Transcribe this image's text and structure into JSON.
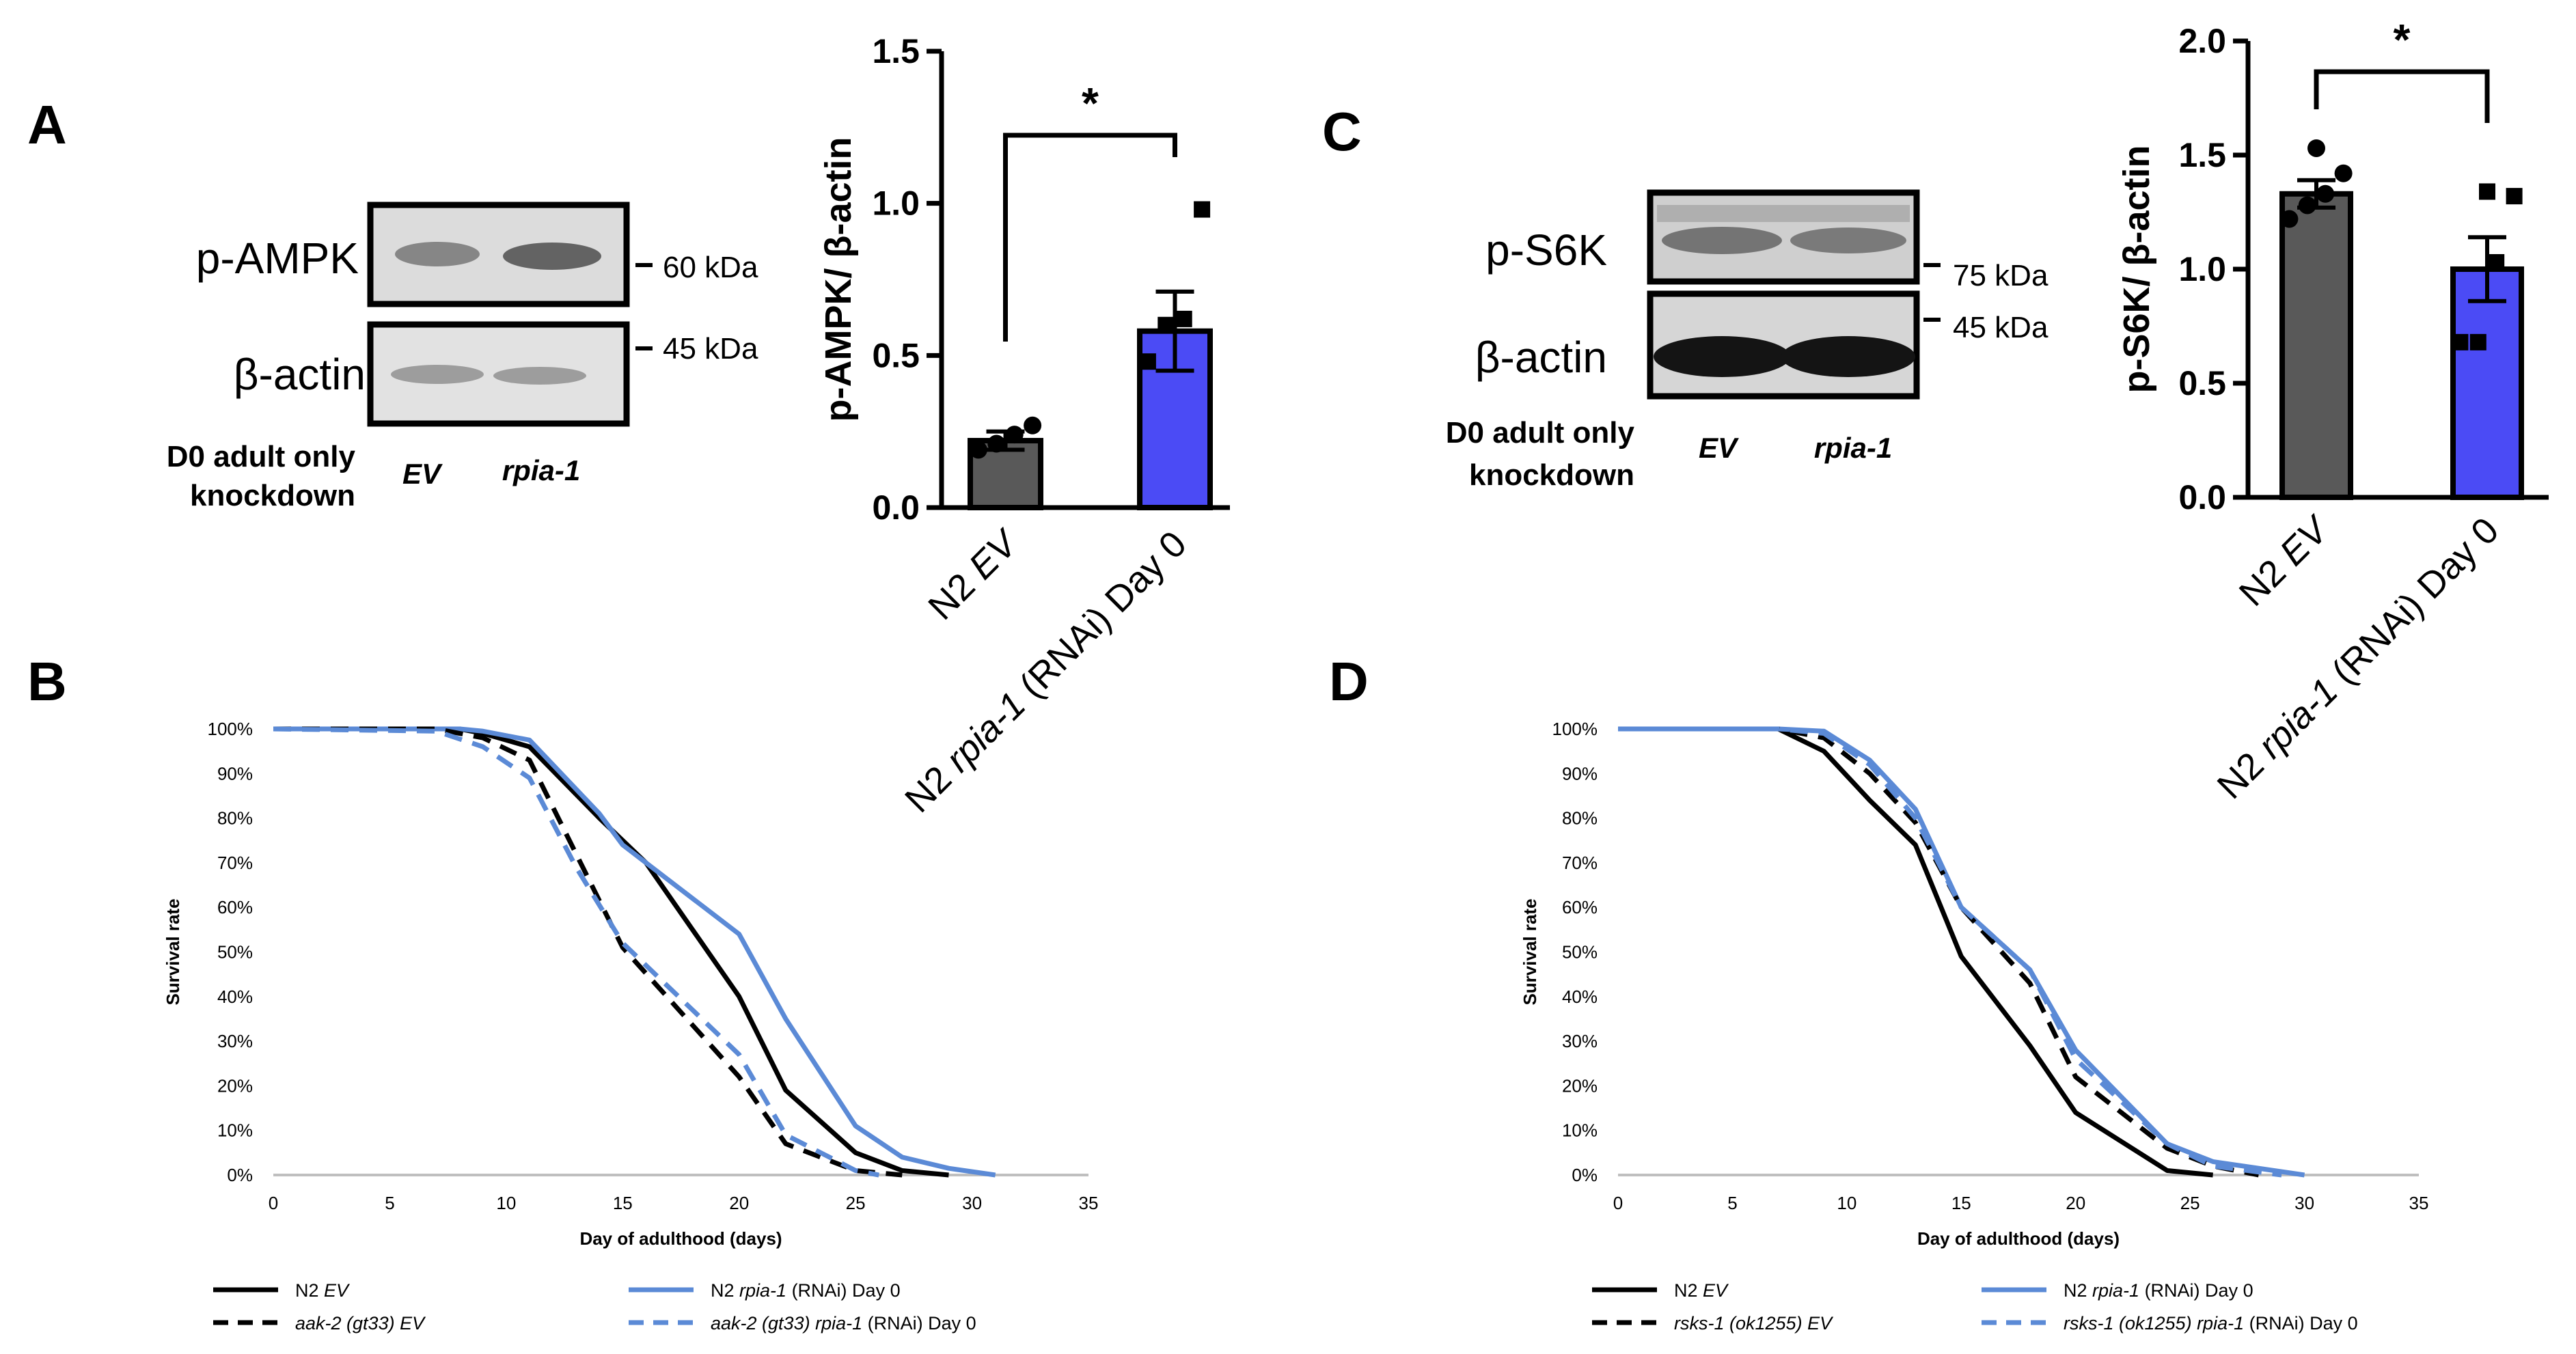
{
  "figure": {
    "panel_labels": [
      "A",
      "B",
      "C",
      "D"
    ]
  },
  "colors": {
    "black": "#000000",
    "gray_bar": "#595959",
    "blue_bar": "#4b4bf5",
    "blue_line": "#5b8ad6",
    "axis_gray": "#bfbfbf",
    "blot_bg": "#dcdcdc"
  },
  "blots": {
    "A": {
      "labels": [
        "p-AMPK",
        "β-actin"
      ],
      "markers": [
        "60 kDa",
        "45 kDa"
      ],
      "condition": [
        "D0 adult only",
        "knockdown"
      ],
      "lanes": [
        "EV",
        "rpia-1"
      ]
    },
    "C": {
      "labels": [
        "p-S6K",
        "β-actin"
      ],
      "markers": [
        "75 kDa",
        "45 kDa"
      ],
      "condition": [
        "D0 adult only",
        "knockdown"
      ],
      "lanes": [
        "EV",
        "rpia-1"
      ]
    }
  },
  "chart_data": [
    {
      "id": "A-bar",
      "type": "bar",
      "ylabel": "p-AMPK/ β-actin",
      "ylim": [
        0,
        1.5
      ],
      "yticks": [
        "0.0",
        "0.5",
        "1.0",
        "1.5"
      ],
      "categories": [
        {
          "parts": [
            {
              "t": "N2 ",
              "i": false
            },
            {
              "t": "EV",
              "i": true
            }
          ]
        },
        {
          "parts": [
            {
              "t": "N2 ",
              "i": false
            },
            {
              "t": "rpia-1",
              "i": true
            },
            {
              "t": " (RNAi) Day 0",
              "i": false
            }
          ]
        }
      ],
      "values": [
        0.22,
        0.58
      ],
      "errors": [
        0.03,
        0.13
      ],
      "points": [
        [
          0.19,
          0.21,
          0.24,
          0.27
        ],
        [
          0.48,
          0.6,
          0.62,
          0.98
        ]
      ],
      "significance": "*"
    },
    {
      "id": "C-bar",
      "type": "bar",
      "ylabel": "p-S6K/ β-actin",
      "ylim": [
        0,
        2.0
      ],
      "yticks": [
        "0.0",
        "0.5",
        "1.0",
        "1.5",
        "2.0"
      ],
      "categories": [
        {
          "parts": [
            {
              "t": "N2 ",
              "i": false
            },
            {
              "t": "EV",
              "i": true
            }
          ]
        },
        {
          "parts": [
            {
              "t": "N2 ",
              "i": false
            },
            {
              "t": "rpia-1",
              "i": true
            },
            {
              "t": " (RNAi) Day 0",
              "i": false
            }
          ]
        }
      ],
      "values": [
        1.33,
        1.0
      ],
      "errors": [
        0.06,
        0.14
      ],
      "points": [
        [
          1.22,
          1.28,
          1.33,
          1.42,
          1.53
        ],
        [
          0.68,
          0.68,
          1.03,
          1.32,
          1.34
        ]
      ],
      "significance": "*"
    },
    {
      "id": "B-survival",
      "type": "line",
      "xlabel": "Day of adulthood  (days)",
      "ylabel": "Survival rate",
      "xlim": [
        0,
        35
      ],
      "ylim": [
        0,
        100
      ],
      "xticks": [
        "0",
        "5",
        "10",
        "15",
        "20",
        "25",
        "30",
        "35"
      ],
      "yticks": [
        "0%",
        "10%",
        "20%",
        "30%",
        "40%",
        "50%",
        "60%",
        "70%",
        "80%",
        "90%",
        "100%"
      ],
      "series": [
        {
          "name": [
            {
              "t": "N2 ",
              "i": false
            },
            {
              "t": "EV",
              "i": true
            }
          ],
          "color": "#000000",
          "dash": false,
          "x": [
            0,
            8,
            9,
            11,
            14,
            16,
            20,
            22,
            25,
            27,
            29
          ],
          "y": [
            100,
            100,
            99,
            96,
            80,
            70,
            40,
            19,
            5,
            1,
            0
          ]
        },
        {
          "name": [
            {
              "t": "N2 ",
              "i": false
            },
            {
              "t": "rpia-1",
              "i": true
            },
            {
              "t": " (RNAi) Day 0",
              "i": false
            }
          ],
          "color": "#5b8ad6",
          "dash": false,
          "x": [
            0,
            8,
            9,
            11,
            14,
            15,
            20,
            22,
            25,
            27,
            29,
            31
          ],
          "y": [
            100,
            100,
            99.5,
            97.5,
            81,
            74,
            54,
            35,
            11,
            4,
            1.5,
            0
          ]
        },
        {
          "name": [
            {
              "t": "aak-2 (gt33) ",
              "i": true
            },
            {
              "t": "EV",
              "i": true
            }
          ],
          "color": "#000000",
          "dash": true,
          "x": [
            0,
            7,
            9,
            11,
            13,
            15,
            20,
            22,
            25,
            27
          ],
          "y": [
            100,
            100,
            98,
            93,
            72,
            51,
            22,
            7,
            1,
            0
          ]
        },
        {
          "name": [
            {
              "t": "aak-2 (gt33) rpia-1",
              "i": true
            },
            {
              "t": " (RNAi) Day 0",
              "i": false
            }
          ],
          "color": "#5b8ad6",
          "dash": true,
          "x": [
            0,
            7,
            9,
            11,
            13,
            15,
            20,
            22,
            25,
            26
          ],
          "y": [
            100,
            99.5,
            96,
            89,
            69,
            52,
            27,
            9,
            1,
            0
          ]
        }
      ]
    },
    {
      "id": "D-survival",
      "type": "line",
      "xlabel": "Day of adulthood  (days)",
      "ylabel": "Survival rate",
      "xlim": [
        0,
        35
      ],
      "ylim": [
        0,
        100
      ],
      "xticks": [
        "0",
        "5",
        "10",
        "15",
        "20",
        "25",
        "30",
        "35"
      ],
      "yticks": [
        "0%",
        "10%",
        "20%",
        "30%",
        "40%",
        "50%",
        "60%",
        "70%",
        "80%",
        "90%",
        "100%"
      ],
      "series": [
        {
          "name": [
            {
              "t": "N2 ",
              "i": false
            },
            {
              "t": "EV",
              "i": true
            }
          ],
          "color": "#000000",
          "dash": false,
          "x": [
            0,
            7,
            9,
            11,
            13,
            15,
            18,
            20,
            24,
            26
          ],
          "y": [
            100,
            100,
            95,
            84,
            74,
            49,
            29,
            14,
            1,
            0
          ]
        },
        {
          "name": [
            {
              "t": "N2 ",
              "i": false
            },
            {
              "t": "rpia-1",
              "i": true
            },
            {
              "t": " (RNAi) Day 0",
              "i": false
            }
          ],
          "color": "#5b8ad6",
          "dash": false,
          "x": [
            0,
            7,
            9,
            11,
            13,
            15,
            18,
            20,
            24,
            26,
            30
          ],
          "y": [
            100,
            100,
            99.5,
            93,
            82,
            60,
            46,
            28,
            7,
            3,
            0
          ]
        },
        {
          "name": [
            {
              "t": "rsks-1 (ok1255) ",
              "i": true
            },
            {
              "t": "EV",
              "i": true
            }
          ],
          "color": "#000000",
          "dash": true,
          "x": [
            0,
            7,
            9,
            11,
            13,
            15,
            18,
            20,
            24,
            26,
            28
          ],
          "y": [
            100,
            100,
            98,
            90,
            79,
            60,
            43,
            22,
            6,
            2,
            0
          ]
        },
        {
          "name": [
            {
              "t": "rsks-1 (ok1255) rpia-1",
              "i": true
            },
            {
              "t": " (RNAi) Day 0",
              "i": false
            }
          ],
          "color": "#5b8ad6",
          "dash": true,
          "x": [
            0,
            7,
            9,
            11,
            13,
            15,
            18,
            20,
            24,
            26,
            29
          ],
          "y": [
            100,
            100,
            99,
            92,
            80,
            60,
            46,
            26,
            7,
            2,
            0
          ]
        }
      ]
    }
  ]
}
